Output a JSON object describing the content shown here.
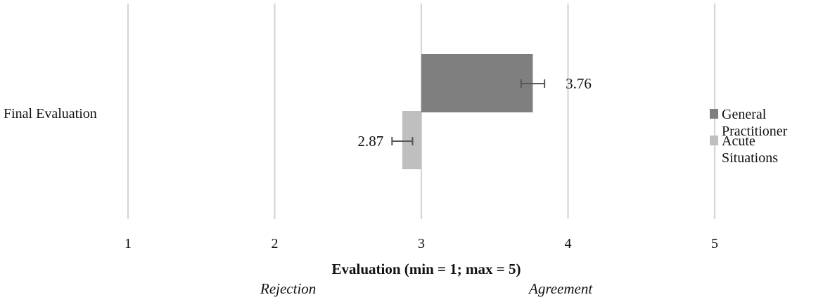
{
  "chart_data": {
    "type": "bar",
    "orientation": "horizontal",
    "title": "",
    "categories": [
      "Final Evaluation"
    ],
    "baseline": 3,
    "xlabel": "Evaluation (min = 1; max = 5)",
    "xlim": [
      1,
      5
    ],
    "xticks": [
      1,
      2,
      3,
      4,
      5
    ],
    "annotations": {
      "low": "Rejection",
      "high": "Agreement"
    },
    "grid": true,
    "legend_position": "right",
    "series": [
      {
        "name": "General Practitioner",
        "legend_lines": [
          "General",
          "Practitioner"
        ],
        "values": [
          3.76
        ],
        "value_labels": [
          "3.76"
        ],
        "error": [
          0.08
        ],
        "color": "#7f7f7f"
      },
      {
        "name": "Acute Situations",
        "legend_lines": [
          "Acute",
          "Situations"
        ],
        "values": [
          2.87
        ],
        "value_labels": [
          "2.87"
        ],
        "error": [
          0.07
        ],
        "color": "#bfbfbf"
      }
    ]
  }
}
